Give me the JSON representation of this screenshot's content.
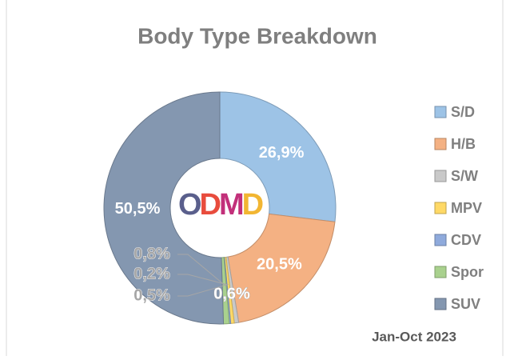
{
  "chart_data": {
    "type": "donut",
    "title": "Body Type Breakdown",
    "subtitle": "Jan-Oct 2023",
    "center_logo": [
      "O",
      "D",
      "M",
      "D"
    ],
    "series": [
      {
        "name": "S/D",
        "color": "#9dc3e6",
        "values": [
          26.9
        ],
        "value_labels": [
          "26,9%"
        ]
      },
      {
        "name": "H/B",
        "color": "#f4b183",
        "values": [
          20.5
        ],
        "value_labels": [
          "20,5%"
        ]
      },
      {
        "name": "S/W",
        "color": "#c9c9c9",
        "values": [
          0.6
        ],
        "value_labels": [
          "0,6%"
        ]
      },
      {
        "name": "MPV",
        "color": "#ffd966",
        "values": [
          0.5
        ],
        "value_labels": [
          "0,5%"
        ]
      },
      {
        "name": "CDV",
        "color": "#8faadc",
        "values": [
          0.2
        ],
        "value_labels": [
          "0,2%"
        ]
      },
      {
        "name": "Spor",
        "color": "#a9d18e",
        "values": [
          0.8
        ],
        "value_labels": [
          "0,8%"
        ]
      },
      {
        "name": "SUV",
        "color": "#8497b0",
        "values": [
          50.5
        ],
        "value_labels": [
          "50,5%"
        ]
      }
    ],
    "legend": "right"
  }
}
